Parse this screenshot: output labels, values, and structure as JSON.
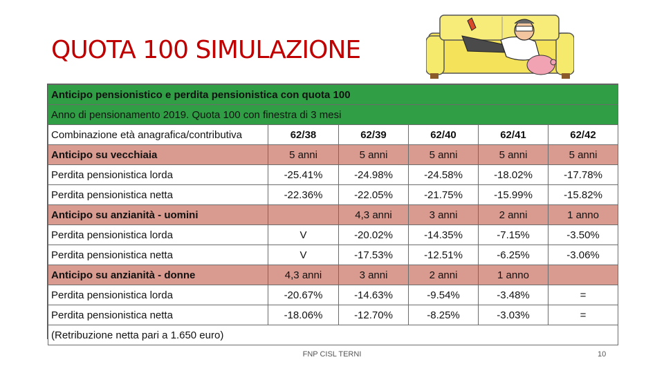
{
  "slide": {
    "title": "QUOTA 100 SIMULAZIONE",
    "footer": "FNP CISL TERNI",
    "page_number": "10"
  },
  "table": {
    "title": "Anticipo pensionistico e perdita pensionistica con quota 100",
    "subtitle": "Anno di pensionamento 2019. Quota 100 con finestra di 3 mesi",
    "header_label": "Combinazione età anagrafica/contributiva",
    "columns": [
      "62/38",
      "62/39",
      "62/40",
      "62/41",
      "62/42"
    ],
    "rows": [
      {
        "label": "Anticipo su vecchiaia",
        "style": "pink",
        "values": [
          "5 anni",
          "5 anni",
          "5 anni",
          "5 anni",
          "5 anni"
        ]
      },
      {
        "label": "Perdita pensionistica lorda",
        "style": "plain",
        "values": [
          "-25.41%",
          "-24.98%",
          "-24.58%",
          "-18.02%",
          "-17.78%"
        ]
      },
      {
        "label": "Perdita pensionistica netta",
        "style": "plain",
        "values": [
          "-22.36%",
          "-22.05%",
          "-21.75%",
          "-15.99%",
          "-15.82%"
        ]
      },
      {
        "label": "Anticipo su anzianità - uomini",
        "style": "pink",
        "values": [
          "",
          "4,3 anni",
          "3 anni",
          "2 anni",
          "1 anno"
        ]
      },
      {
        "label": "Perdita pensionistica lorda",
        "style": "plain",
        "values": [
          "V",
          "-20.02%",
          "-14.35%",
          "-7.15%",
          "-3.50%"
        ]
      },
      {
        "label": "Perdita pensionistica netta",
        "style": "plain",
        "values": [
          "V",
          "-17.53%",
          "-12.51%",
          "-6.25%",
          "-3.06%"
        ]
      },
      {
        "label": "Anticipo su anzianità - donne",
        "style": "pink",
        "values": [
          "4,3 anni",
          "3 anni",
          "2 anni",
          "1 anno",
          ""
        ]
      },
      {
        "label": "Perdita pensionistica lorda",
        "style": "plain",
        "values": [
          "-20.67%",
          "-14.63%",
          "-9.54%",
          "-3.48%",
          "="
        ]
      },
      {
        "label": "Perdita pensionistica netta",
        "style": "plain",
        "values": [
          "-18.06%",
          "-12.70%",
          "-8.25%",
          "-3.03%",
          "="
        ]
      }
    ],
    "note": "(Retribuzione netta pari a 1.650 euro)"
  },
  "colors": {
    "title": "#c00000",
    "header_green": "#2f9e44",
    "highlight_pink": "#d99a8f"
  },
  "icons": {
    "cartoon": "man-relaxing-on-sofa-cartoon"
  }
}
